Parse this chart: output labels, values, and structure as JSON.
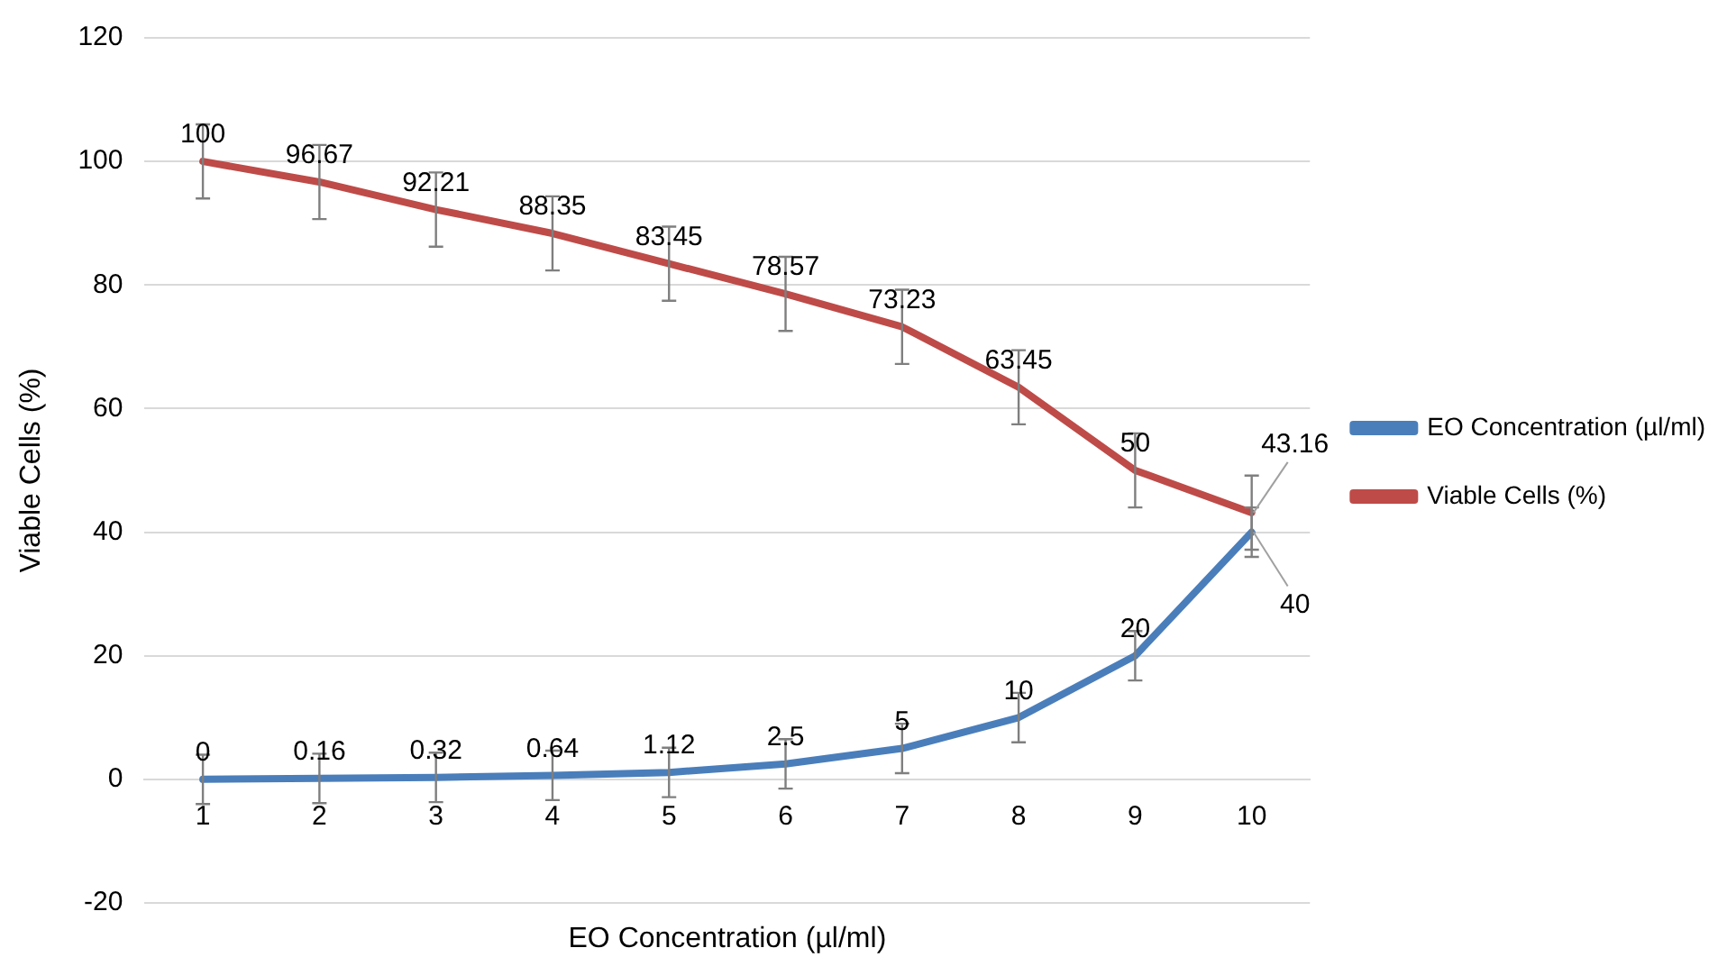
{
  "chart_data": {
    "type": "line",
    "xlabel": "EO Concentration (µl/ml)",
    "ylabel": "Viable Cells (%)",
    "categories": [
      "1",
      "2",
      "3",
      "4",
      "5",
      "6",
      "7",
      "8",
      "9",
      "10"
    ],
    "series": [
      {
        "name": "EO Concentration (µl/ml)",
        "color": "#4a7ebb",
        "values": [
          0,
          0.16,
          0.32,
          0.64,
          1.12,
          2.5,
          5,
          10,
          20,
          40
        ],
        "errors": [
          4,
          4,
          4,
          4,
          4,
          4,
          4,
          4,
          4,
          4
        ]
      },
      {
        "name": "Viable Cells (%)",
        "color": "#be4b48",
        "values": [
          100,
          96.67,
          92.21,
          88.35,
          83.45,
          78.57,
          73.23,
          63.45,
          50,
          43.16
        ],
        "errors": [
          6,
          6,
          6,
          6,
          6,
          6,
          6,
          6,
          6,
          6
        ]
      }
    ],
    "ylim": [
      -20,
      120
    ],
    "yticks": [
      -20,
      0,
      20,
      40,
      60,
      80,
      100,
      120
    ],
    "grid": "y",
    "legend": "right",
    "data_labels": true,
    "marker": "none",
    "line_style": "solid"
  }
}
